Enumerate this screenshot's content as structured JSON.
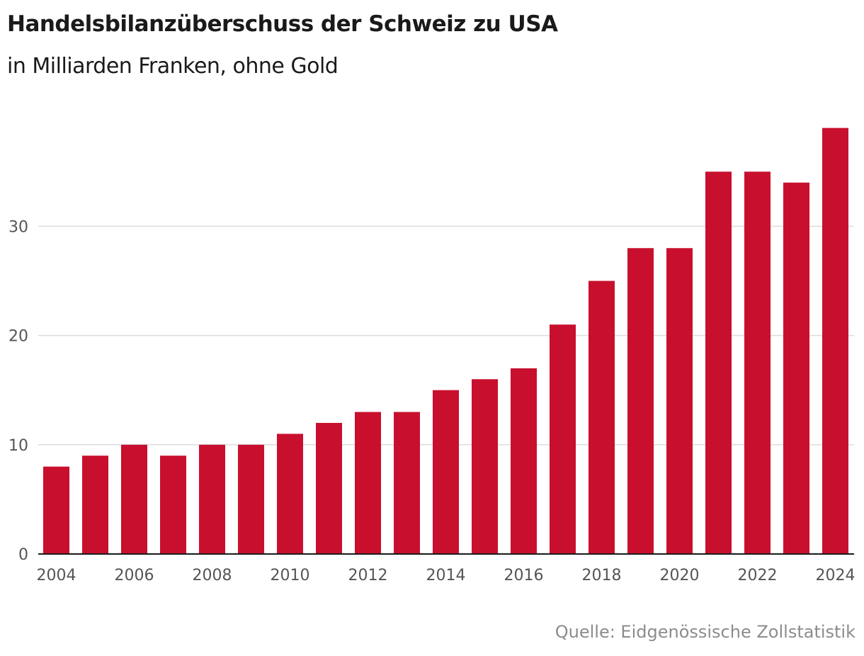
{
  "colors": {
    "bar": "#c8102e",
    "grid": "#dcdcdc",
    "axis": "#1a1a1a",
    "text": "#1a1a1a",
    "muted": "#8c8c8c"
  },
  "source": "Quelle: Eidgenössische Zollstatistik",
  "chart_data": {
    "type": "bar",
    "title": "Handelsbilanzüberschuss der Schweiz zu USA",
    "subtitle": "in Milliarden Franken, ohne Gold",
    "xlabel": "",
    "ylabel": "",
    "categories": [
      "2004",
      "2005",
      "2006",
      "2007",
      "2008",
      "2009",
      "2010",
      "2011",
      "2012",
      "2013",
      "2014",
      "2015",
      "2016",
      "2017",
      "2018",
      "2019",
      "2020",
      "2021",
      "2022",
      "2023",
      "2024"
    ],
    "values": [
      8,
      9,
      10,
      9,
      10,
      10,
      11,
      12,
      13,
      13,
      15,
      16,
      17,
      21,
      25,
      28,
      28,
      35,
      35,
      34,
      39
    ],
    "x_tick_labels": [
      "2004",
      "2006",
      "2008",
      "2010",
      "2012",
      "2014",
      "2016",
      "2018",
      "2020",
      "2022",
      "2024"
    ],
    "y_ticks": [
      0,
      10,
      20,
      30
    ],
    "ylim": [
      0,
      40
    ],
    "grid": true,
    "legend": "none"
  }
}
